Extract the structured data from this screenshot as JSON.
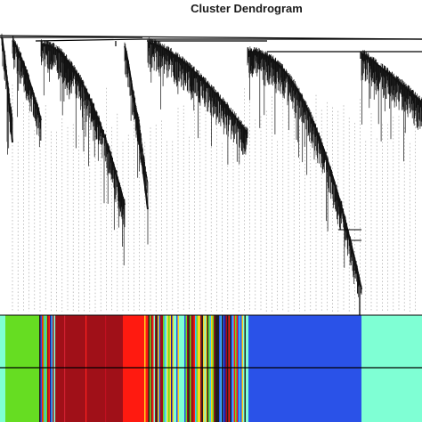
{
  "figure": {
    "title": "Cluster Dendrogram"
  },
  "module_colors": [
    {
      "name": "turquoise",
      "hex": "#7fffd4"
    },
    {
      "name": "blue",
      "hex": "#2a52e8"
    },
    {
      "name": "brown",
      "hex": "#a01018"
    },
    {
      "name": "red",
      "hex": "#ff1a10"
    },
    {
      "name": "green",
      "hex": "#66dd22"
    },
    {
      "name": "mixed",
      "hex": "#40a0e0"
    }
  ]
}
